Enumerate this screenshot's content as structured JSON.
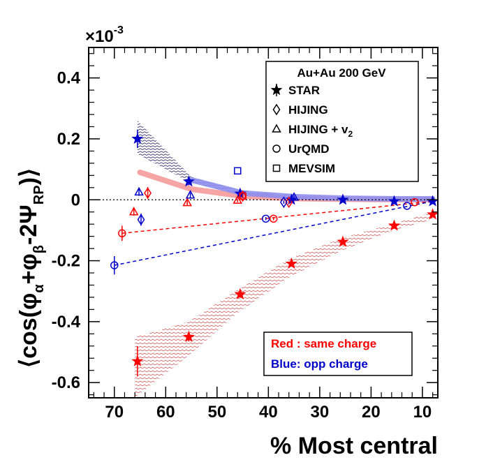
{
  "chart_data": {
    "type": "scatter",
    "title": "",
    "xlabel": "% Most central",
    "ylabel": "⟨cos(φα+φβ−2ΨRP)⟩",
    "ylabel_parts": {
      "open": "⟨cos(φ",
      "alpha": "α",
      "plus": "+φ",
      "beta": "β",
      "minus": "-2Ψ",
      "rp": "RP",
      "close": ")⟩"
    },
    "y_scale_label": {
      "times": "×",
      "base": "10",
      "exp": "-3"
    },
    "xlim": [
      75,
      7
    ],
    "ylim": [
      -0.65,
      0.5
    ],
    "x_ticks": [
      70,
      60,
      50,
      40,
      30,
      20,
      10
    ],
    "y_ticks": [
      -0.6,
      -0.4,
      -0.2,
      0,
      0.2,
      0.4
    ],
    "y_tick_labels": [
      "-0.6",
      "-0.4",
      "-0.2",
      "0",
      "0.2",
      "0.4"
    ],
    "legend": {
      "title": "Au+Au 200 GeV",
      "position": "top-right",
      "entries": [
        "STAR",
        "HIJING",
        "HIJING + v",
        "UrQMD",
        "MEVSIM"
      ],
      "v2_subscript": "2"
    },
    "annotations": {
      "red": "Red : same charge",
      "blue": "Blue:  opp charge"
    },
    "colors": {
      "same": "#ff0000",
      "opp": "#0000cc",
      "same_band": "#cc3333",
      "opp_band": "#222266",
      "same_thick": "#f59a9a",
      "opp_thick": "#8f8fef"
    },
    "series": [
      {
        "name": "STAR same charge",
        "marker": "star",
        "color": "same",
        "points": [
          {
            "x": 65.5,
            "y": -0.53,
            "err": 0.05
          },
          {
            "x": 55.5,
            "y": -0.45,
            "err": 0.015
          },
          {
            "x": 45.5,
            "y": -0.31,
            "err": 0.01
          },
          {
            "x": 35.5,
            "y": -0.21,
            "err": 0.008
          },
          {
            "x": 25.5,
            "y": -0.138,
            "err": 0.006
          },
          {
            "x": 15.5,
            "y": -0.085,
            "err": 0.005
          },
          {
            "x": 8,
            "y": -0.048,
            "err": 0.005
          }
        ]
      },
      {
        "name": "STAR opp charge",
        "marker": "star",
        "color": "opp",
        "points": [
          {
            "x": 65.5,
            "y": 0.2,
            "err": 0.03
          },
          {
            "x": 55.5,
            "y": 0.06,
            "err": 0.012
          },
          {
            "x": 45.5,
            "y": 0.02,
            "err": 0.008
          },
          {
            "x": 35.5,
            "y": 0.0,
            "err": 0.005
          },
          {
            "x": 25.5,
            "y": 0.0,
            "err": 0.004
          },
          {
            "x": 15.5,
            "y": -0.005,
            "err": 0.004
          },
          {
            "x": 8,
            "y": -0.005,
            "err": 0.004
          }
        ]
      },
      {
        "name": "HIJING same",
        "marker": "diamond",
        "color": "same",
        "points": [
          {
            "x": 63.5,
            "y": 0.022,
            "err": 0.02
          },
          {
            "x": 45,
            "y": 0.012,
            "err": 0.006
          },
          {
            "x": 36,
            "y": -0.008,
            "err": 0.005
          }
        ]
      },
      {
        "name": "HIJING opp",
        "marker": "diamond",
        "color": "opp",
        "points": [
          {
            "x": 64.8,
            "y": -0.065,
            "err": 0.02
          },
          {
            "x": 37,
            "y": -0.008,
            "err": 0.005
          }
        ]
      },
      {
        "name": "HIJING+v2 same",
        "marker": "triangle",
        "color": "same",
        "points": [
          {
            "x": 66.2,
            "y": -0.04,
            "err": 0.012
          },
          {
            "x": 55.8,
            "y": -0.01,
            "err": 0.008
          },
          {
            "x": 46,
            "y": -0.002,
            "err": 0.006
          }
        ]
      },
      {
        "name": "HIJING+v2 opp",
        "marker": "triangle",
        "color": "opp",
        "points": [
          {
            "x": 65.2,
            "y": 0.025,
            "err": 0.012
          },
          {
            "x": 55.2,
            "y": 0.015,
            "err": 0.008
          },
          {
            "x": 35,
            "y": 0.008,
            "err": 0.006
          }
        ]
      },
      {
        "name": "UrQMD same",
        "marker": "circle",
        "color": "same",
        "points": [
          {
            "x": 68.5,
            "y": -0.11,
            "err": 0.025
          },
          {
            "x": 39,
            "y": -0.062,
            "err": 0.005
          },
          {
            "x": 11.5,
            "y": -0.008,
            "err": 0.004
          }
        ]
      },
      {
        "name": "UrQMD opp",
        "marker": "circle",
        "color": "opp",
        "points": [
          {
            "x": 70,
            "y": -0.215,
            "err": 0.03
          },
          {
            "x": 40.5,
            "y": -0.062,
            "err": 0.005
          },
          {
            "x": 13,
            "y": -0.02,
            "err": 0.004
          }
        ]
      },
      {
        "name": "MEVSIM opp",
        "marker": "square",
        "color": "opp",
        "points": [
          {
            "x": 46,
            "y": 0.095,
            "err": 0.004
          }
        ]
      },
      {
        "name": "MEVSIM same",
        "marker": "square",
        "color": "same",
        "points": [
          {
            "x": 45,
            "y": 0.012,
            "err": 0.004
          }
        ]
      }
    ],
    "fits": [
      {
        "name": "UrQMD same fit",
        "color": "same",
        "x": [
          68.5,
          8
        ],
        "y": [
          -0.11,
          -0.005
        ]
      },
      {
        "name": "UrQMD opp fit",
        "color": "opp",
        "x": [
          70,
          8
        ],
        "y": [
          -0.215,
          -0.005
        ]
      }
    ],
    "bands": [
      {
        "name": "same charge model band",
        "color": "same_band",
        "x": [
          66,
          55.5,
          45.5,
          35.5,
          25.5,
          15.5,
          8
        ],
        "low": [
          -0.65,
          -0.51,
          -0.365,
          -0.25,
          -0.165,
          -0.1,
          -0.065
        ],
        "high": [
          -0.45,
          -0.4,
          -0.29,
          -0.19,
          -0.125,
          -0.078,
          -0.04
        ]
      },
      {
        "name": "opp charge model band",
        "color": "opp_band",
        "x": [
          65.5,
          55,
          45,
          35,
          25,
          15,
          8
        ],
        "low": [
          0.15,
          0.055,
          0.018,
          0.005,
          0.002,
          0.0,
          0.0
        ],
        "high": [
          0.26,
          0.075,
          0.03,
          0.012,
          0.007,
          0.005,
          0.005
        ]
      }
    ],
    "thick_curves": [
      {
        "name": "same charge prediction",
        "color": "same_thick",
        "x": [
          65,
          55,
          45,
          35,
          25,
          15,
          8
        ],
        "y": [
          0.09,
          0.035,
          0.012,
          0.004,
          0.002,
          0.001,
          0.001
        ]
      },
      {
        "name": "opp charge prediction",
        "color": "opp_thick",
        "x": [
          55,
          45,
          35,
          25,
          15,
          8
        ],
        "y": [
          0.065,
          0.022,
          0.01,
          0.005,
          0.003,
          0.003
        ]
      }
    ]
  }
}
